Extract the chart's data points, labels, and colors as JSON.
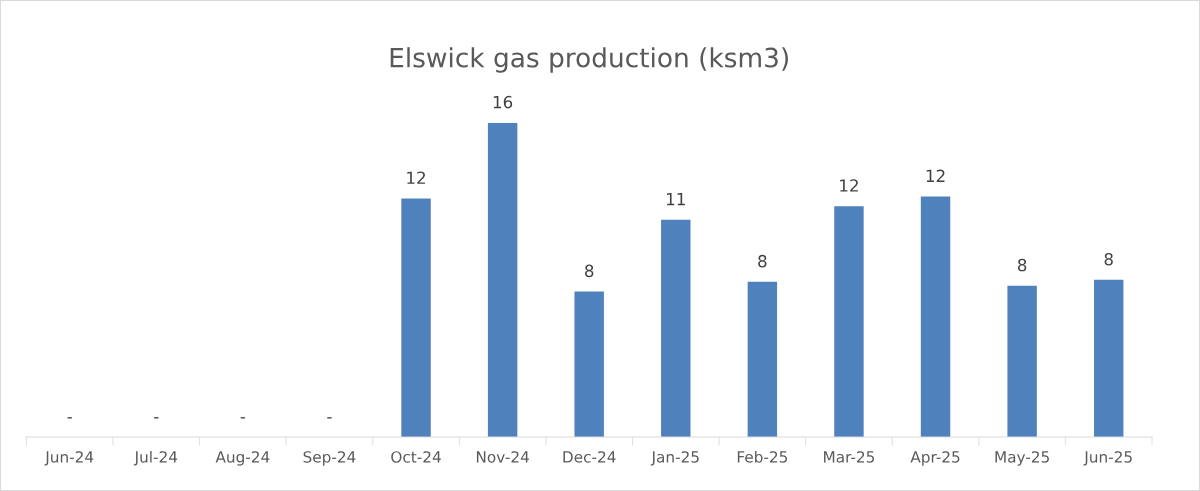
{
  "chart_data": {
    "type": "bar",
    "title": "Elswick gas production (ksm3)",
    "categories": [
      "Jun-24",
      "Jul-24",
      "Aug-24",
      "Sep-24",
      "Oct-24",
      "Nov-24",
      "Dec-24",
      "Jan-25",
      "Feb-25",
      "Mar-25",
      "Apr-25",
      "May-25",
      "Jun-25"
    ],
    "values": [
      0,
      0,
      0,
      0,
      12.3,
      16.2,
      7.5,
      11.2,
      8.0,
      11.9,
      12.4,
      7.8,
      8.1
    ],
    "value_labels": [
      "-",
      "-",
      "-",
      "-",
      "12",
      "16",
      "8",
      "11",
      "8",
      "12",
      "12",
      "8",
      "8"
    ],
    "color": "#4f81bd",
    "tick_labels": "x",
    "grid": false,
    "legend": false
  }
}
